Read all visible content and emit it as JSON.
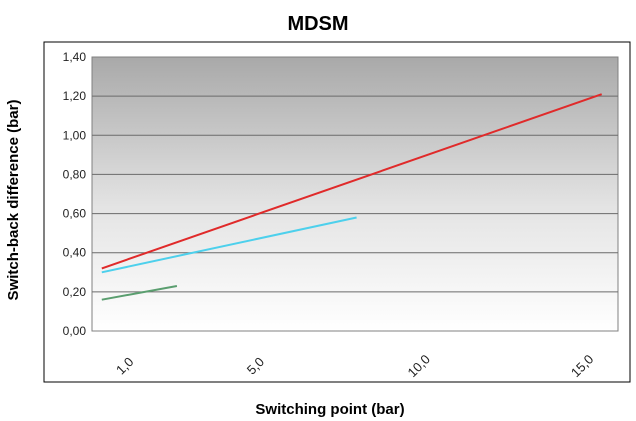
{
  "chart_data": {
    "type": "line",
    "title": "MDSM",
    "xlabel": "Switching point (bar)",
    "ylabel": "Switch-back difference (bar)",
    "ylim": [
      0,
      1.4
    ],
    "yticks": [
      "0,00",
      "0,20",
      "0,40",
      "0,60",
      "0,80",
      "1,00",
      "1,20",
      "1,40"
    ],
    "yticks_values": [
      0,
      0.2,
      0.4,
      0.6,
      0.8,
      1.0,
      1.2,
      1.4
    ],
    "xlim": [
      -0.1,
      16.0
    ],
    "xticks": [
      "1,0",
      "5,0",
      "10,0",
      "15,0"
    ],
    "xticks_values": [
      1.0,
      5.0,
      10.0,
      15.0
    ],
    "grid": true,
    "legend": "none",
    "series": [
      {
        "color": "#5a9e6f",
        "x": [
          0.2,
          2.5
        ],
        "y": [
          0.16,
          0.23
        ]
      },
      {
        "color": "#4dd0ec",
        "x": [
          0.2,
          8.0
        ],
        "y": [
          0.3,
          0.58
        ]
      },
      {
        "color": "#e02a2a",
        "x": [
          0.2,
          15.5
        ],
        "y": [
          0.32,
          1.21
        ]
      }
    ]
  }
}
